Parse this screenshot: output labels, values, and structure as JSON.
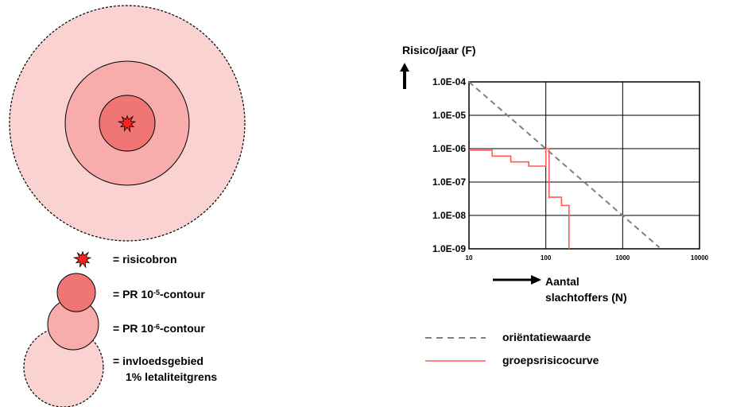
{
  "diagram": {
    "colors": {
      "outer_zone": "#fbd2d2",
      "middle_zone": "#f8acac",
      "inner_zone": "#f07676",
      "source": "#ff2020",
      "outline": "#000000"
    },
    "legend": {
      "source": "= risicobron",
      "pr5_prefix": "= PR 10",
      "pr5_exp": "-5",
      "pr5_suffix": "-contour",
      "pr6_prefix": "= PR 10",
      "pr6_exp": "-6",
      "pr6_suffix": "-contour",
      "impact_line1": "= invloedsgebied",
      "impact_line2": "1% letaliteitgrens"
    }
  },
  "chart_data": {
    "type": "line",
    "x_scale": "log",
    "y_scale": "log",
    "xlim": [
      10,
      10000
    ],
    "ylim": [
      1e-09,
      0.0001
    ],
    "grid": true,
    "ylabel": "Risico/jaar (F)",
    "xlabel_line1": "Aantal",
    "xlabel_line2": "slachtoffers (N)",
    "y_tick_labels": [
      "1.0E-04",
      "1.0E-05",
      "1.0E-06",
      "1.0E-07",
      "1.0E-08",
      "1.0E-09"
    ],
    "x_tick_labels": [
      "10",
      "100",
      "1000",
      "10000"
    ],
    "series": [
      {
        "name": "oriëntatiewaarde",
        "color": "#808080",
        "style": "dashed",
        "points": [
          [
            10,
            0.0001
          ],
          [
            3000,
            1.1e-09
          ]
        ]
      },
      {
        "name": "groepsrisicocurve",
        "color": "#ff5a5a",
        "style": "step",
        "points": [
          [
            10,
            9e-07
          ],
          [
            20,
            9e-07
          ],
          [
            20,
            6e-07
          ],
          [
            35,
            6e-07
          ],
          [
            35,
            4e-07
          ],
          [
            60,
            4e-07
          ],
          [
            60,
            3e-07
          ],
          [
            100,
            3e-07
          ],
          [
            100,
            1e-06
          ],
          [
            110,
            1e-06
          ],
          [
            110,
            3.5e-08
          ],
          [
            160,
            3.5e-08
          ],
          [
            160,
            2e-08
          ],
          [
            200,
            2e-08
          ],
          [
            200,
            1e-09
          ]
        ]
      }
    ],
    "legend_position": "bottom"
  }
}
